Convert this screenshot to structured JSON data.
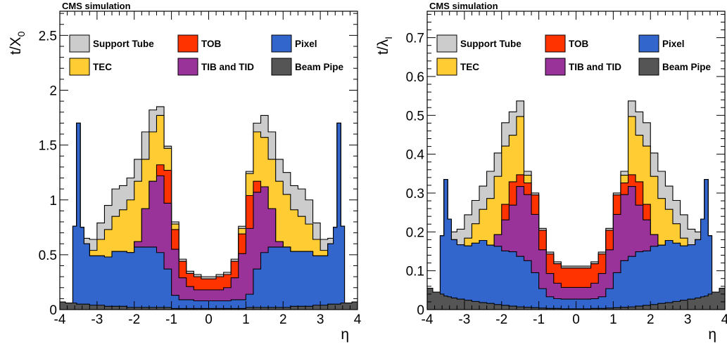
{
  "chart_data": [
    {
      "type": "area",
      "header": "CMS simulation",
      "xlabel": "η",
      "ylabel_base": "t/X",
      "ylabel_sub": "0",
      "xlim": [
        -4,
        4
      ],
      "ylim": [
        0,
        2.72
      ],
      "xticks": [
        -4,
        -3,
        -2,
        -1,
        0,
        1,
        2,
        3,
        4
      ],
      "xtick_labels": [
        "-4",
        "-3",
        "-2",
        "-1",
        "0",
        "1",
        "2",
        "3",
        "4"
      ],
      "yticks": [
        0,
        0.5,
        1,
        1.5,
        2,
        2.5
      ],
      "ytick_labels": [
        "0",
        "0.5",
        "1",
        "1.5",
        "2",
        "2.5"
      ],
      "legend": [
        {
          "label": "Support Tube",
          "color": "#cccccc"
        },
        {
          "label": "TOB",
          "color": "#ff3300"
        },
        {
          "label": "Pixel",
          "color": "#3366cc"
        },
        {
          "label": "TEC",
          "color": "#ffcc33"
        },
        {
          "label": "TIB and TID",
          "color": "#993399"
        },
        {
          "label": "Beam Pipe",
          "color": "#555555"
        }
      ],
      "eta": [
        -4.0,
        -3.7,
        -3.6,
        -3.5,
        -3.4,
        -3.3,
        -3.1,
        -2.9,
        -2.7,
        -2.5,
        -2.3,
        -2.1,
        -1.9,
        -1.7,
        -1.5,
        -1.3,
        -1.1,
        -0.9,
        -0.7,
        -0.5,
        -0.3,
        -0.1,
        0.1,
        0.3,
        0.5,
        0.7,
        0.9,
        1.1,
        1.3,
        1.5,
        1.7,
        1.9,
        2.1,
        2.3,
        2.5,
        2.7,
        2.9,
        3.1,
        3.3,
        3.4,
        3.5,
        3.6,
        3.7,
        4.0
      ],
      "series": [
        {
          "name": "Beam Pipe",
          "color": "#555555",
          "values": [
            0.07,
            0.06,
            0.06,
            0.05,
            0.05,
            0.05,
            0.04,
            0.04,
            0.03,
            0.03,
            0.03,
            0.02,
            0.02,
            0.02,
            0.02,
            0.02,
            0.02,
            0.01,
            0.01,
            0.01,
            0.01,
            0.01,
            0.01,
            0.01,
            0.01,
            0.01,
            0.01,
            0.02,
            0.02,
            0.02,
            0.02,
            0.02,
            0.02,
            0.03,
            0.03,
            0.03,
            0.04,
            0.04,
            0.05,
            0.05,
            0.05,
            0.06,
            0.06,
            0.07
          ]
        },
        {
          "name": "Pixel",
          "color": "#3366cc",
          "values": [
            0.0,
            0.0,
            0.7,
            1.65,
            0.7,
            0.55,
            0.45,
            0.45,
            0.45,
            0.5,
            0.5,
            0.5,
            0.55,
            0.55,
            0.55,
            0.5,
            0.35,
            0.12,
            0.08,
            0.08,
            0.07,
            0.07,
            0.07,
            0.07,
            0.07,
            0.08,
            0.08,
            0.12,
            0.35,
            0.5,
            0.55,
            0.55,
            0.55,
            0.5,
            0.5,
            0.5,
            0.45,
            0.45,
            0.55,
            0.7,
            1.65,
            0.7,
            0.0,
            0.0
          ]
        },
        {
          "name": "TIB and TID",
          "color": "#993399",
          "values": [
            0.0,
            0.0,
            0.0,
            0.0,
            0.0,
            0.0,
            0.0,
            0.0,
            0.0,
            0.0,
            0.0,
            0.0,
            0.05,
            0.35,
            0.6,
            0.7,
            0.6,
            0.42,
            0.2,
            0.12,
            0.1,
            0.1,
            0.1,
            0.1,
            0.12,
            0.2,
            0.42,
            0.6,
            0.7,
            0.6,
            0.35,
            0.05,
            0.0,
            0.0,
            0.0,
            0.0,
            0.0,
            0.0,
            0.0,
            0.0,
            0.0,
            0.0,
            0.0,
            0.0
          ]
        },
        {
          "name": "TOB",
          "color": "#ff3300",
          "values": [
            0.0,
            0.0,
            0.0,
            0.0,
            0.0,
            0.0,
            0.0,
            0.0,
            0.0,
            0.0,
            0.0,
            0.0,
            0.0,
            0.0,
            0.0,
            0.1,
            0.3,
            0.18,
            0.15,
            0.12,
            0.12,
            0.1,
            0.1,
            0.12,
            0.12,
            0.15,
            0.18,
            0.3,
            0.1,
            0.0,
            0.0,
            0.0,
            0.0,
            0.0,
            0.0,
            0.0,
            0.0,
            0.0,
            0.0,
            0.0,
            0.0,
            0.0,
            0.0,
            0.0
          ]
        },
        {
          "name": "TEC",
          "color": "#ffcc33",
          "values": [
            0.0,
            0.0,
            0.0,
            0.0,
            0.0,
            0.0,
            0.05,
            0.15,
            0.25,
            0.32,
            0.38,
            0.48,
            0.55,
            0.45,
            0.45,
            0.45,
            0.2,
            0.05,
            0.0,
            0.0,
            0.0,
            0.0,
            0.0,
            0.0,
            0.0,
            0.0,
            0.05,
            0.2,
            0.45,
            0.45,
            0.45,
            0.55,
            0.48,
            0.38,
            0.32,
            0.25,
            0.15,
            0.05,
            0.0,
            0.0,
            0.0,
            0.0,
            0.0,
            0.0
          ]
        },
        {
          "name": "Support Tube",
          "color": "#cccccc",
          "values": [
            0.0,
            0.0,
            0.0,
            0.0,
            0.0,
            0.05,
            0.1,
            0.15,
            0.22,
            0.25,
            0.22,
            0.2,
            0.2,
            0.25,
            0.2,
            0.08,
            0.02,
            0.02,
            0.02,
            0.02,
            0.02,
            0.02,
            0.02,
            0.02,
            0.02,
            0.02,
            0.02,
            0.02,
            0.08,
            0.2,
            0.25,
            0.2,
            0.2,
            0.22,
            0.25,
            0.22,
            0.15,
            0.1,
            0.05,
            0.0,
            0.0,
            0.0,
            0.0,
            0.0
          ]
        }
      ]
    },
    {
      "type": "area",
      "header": "CMS simulation",
      "xlabel": "η",
      "ylabel_base": "t/λ",
      "ylabel_sub": "I",
      "xlim": [
        -4,
        4
      ],
      "ylim": [
        0,
        0.768
      ],
      "xticks": [
        -4,
        -3,
        -2,
        -1,
        0,
        1,
        2,
        3,
        4
      ],
      "xtick_labels": [
        "-4",
        "-3",
        "-2",
        "-1",
        "0",
        "1",
        "2",
        "3",
        "4"
      ],
      "yticks": [
        0,
        0.1,
        0.2,
        0.3,
        0.4,
        0.5,
        0.6,
        0.7
      ],
      "ytick_labels": [
        "0",
        "0.1",
        "0.2",
        "0.3",
        "0.4",
        "0.5",
        "0.6",
        "0.7"
      ],
      "legend": [
        {
          "label": "Support Tube",
          "color": "#cccccc"
        },
        {
          "label": "TOB",
          "color": "#ff3300"
        },
        {
          "label": "Pixel",
          "color": "#3366cc"
        },
        {
          "label": "TEC",
          "color": "#ffcc33"
        },
        {
          "label": "TIB and TID",
          "color": "#993399"
        },
        {
          "label": "Beam Pipe",
          "color": "#555555"
        }
      ],
      "eta": [
        -4.0,
        -3.7,
        -3.6,
        -3.5,
        -3.4,
        -3.3,
        -3.1,
        -2.9,
        -2.7,
        -2.5,
        -2.3,
        -2.1,
        -1.9,
        -1.7,
        -1.5,
        -1.3,
        -1.1,
        -0.9,
        -0.7,
        -0.5,
        -0.3,
        -0.1,
        0.1,
        0.3,
        0.5,
        0.7,
        0.9,
        1.1,
        1.3,
        1.5,
        1.7,
        1.9,
        2.1,
        2.3,
        2.5,
        2.7,
        2.9,
        3.1,
        3.3,
        3.4,
        3.5,
        3.6,
        3.7,
        4.0
      ],
      "series": [
        {
          "name": "Beam Pipe",
          "color": "#555555",
          "values": [
            0.055,
            0.045,
            0.04,
            0.035,
            0.033,
            0.03,
            0.027,
            0.024,
            0.021,
            0.018,
            0.016,
            0.013,
            0.011,
            0.009,
            0.007,
            0.006,
            0.005,
            0.004,
            0.003,
            0.003,
            0.002,
            0.002,
            0.002,
            0.002,
            0.003,
            0.003,
            0.004,
            0.005,
            0.006,
            0.007,
            0.009,
            0.011,
            0.013,
            0.016,
            0.018,
            0.021,
            0.024,
            0.027,
            0.03,
            0.033,
            0.035,
            0.04,
            0.045,
            0.055
          ]
        },
        {
          "name": "Pixel",
          "color": "#3366cc",
          "values": [
            0.0,
            0.0,
            0.15,
            0.3,
            0.2,
            0.15,
            0.14,
            0.14,
            0.15,
            0.16,
            0.15,
            0.15,
            0.14,
            0.14,
            0.13,
            0.12,
            0.09,
            0.05,
            0.03,
            0.025,
            0.025,
            0.025,
            0.025,
            0.025,
            0.025,
            0.03,
            0.05,
            0.09,
            0.12,
            0.13,
            0.14,
            0.14,
            0.15,
            0.15,
            0.16,
            0.15,
            0.14,
            0.14,
            0.15,
            0.2,
            0.3,
            0.15,
            0.0,
            0.0
          ]
        },
        {
          "name": "TIB and TID",
          "color": "#993399",
          "values": [
            0.0,
            0.0,
            0.0,
            0.0,
            0.0,
            0.0,
            0.0,
            0.0,
            0.0,
            0.0,
            0.0,
            0.03,
            0.08,
            0.12,
            0.18,
            0.17,
            0.15,
            0.1,
            0.06,
            0.04,
            0.03,
            0.03,
            0.03,
            0.03,
            0.04,
            0.06,
            0.1,
            0.15,
            0.17,
            0.18,
            0.12,
            0.08,
            0.03,
            0.0,
            0.0,
            0.0,
            0.0,
            0.0,
            0.0,
            0.0,
            0.0,
            0.0,
            0.0,
            0.0
          ]
        },
        {
          "name": "TOB",
          "color": "#ff3300",
          "values": [
            0.0,
            0.0,
            0.0,
            0.0,
            0.0,
            0.0,
            0.0,
            0.0,
            0.0,
            0.0,
            0.0,
            0.0,
            0.04,
            0.06,
            0.03,
            0.03,
            0.05,
            0.05,
            0.05,
            0.05,
            0.05,
            0.05,
            0.05,
            0.05,
            0.05,
            0.05,
            0.05,
            0.05,
            0.03,
            0.03,
            0.06,
            0.04,
            0.0,
            0.0,
            0.0,
            0.0,
            0.0,
            0.0,
            0.0,
            0.0,
            0.0,
            0.0,
            0.0,
            0.0
          ]
        },
        {
          "name": "TEC",
          "color": "#ffcc33",
          "values": [
            0.0,
            0.0,
            0.0,
            0.0,
            0.0,
            0.0,
            0.0,
            0.02,
            0.05,
            0.08,
            0.12,
            0.15,
            0.15,
            0.12,
            0.15,
            0.02,
            0.0,
            0.0,
            0.0,
            0.0,
            0.0,
            0.0,
            0.0,
            0.0,
            0.0,
            0.0,
            0.0,
            0.0,
            0.02,
            0.15,
            0.12,
            0.15,
            0.15,
            0.12,
            0.08,
            0.05,
            0.02,
            0.0,
            0.0,
            0.0,
            0.0,
            0.0,
            0.0,
            0.0
          ]
        },
        {
          "name": "Support Tube",
          "color": "#cccccc",
          "values": [
            0.0,
            0.0,
            0.0,
            0.0,
            0.0,
            0.02,
            0.04,
            0.06,
            0.06,
            0.06,
            0.07,
            0.06,
            0.06,
            0.06,
            0.04,
            0.01,
            0.005,
            0.005,
            0.005,
            0.005,
            0.005,
            0.005,
            0.005,
            0.005,
            0.005,
            0.005,
            0.005,
            0.005,
            0.01,
            0.04,
            0.06,
            0.06,
            0.06,
            0.07,
            0.06,
            0.06,
            0.06,
            0.04,
            0.02,
            0.0,
            0.0,
            0.0,
            0.0,
            0.0
          ]
        }
      ]
    }
  ]
}
